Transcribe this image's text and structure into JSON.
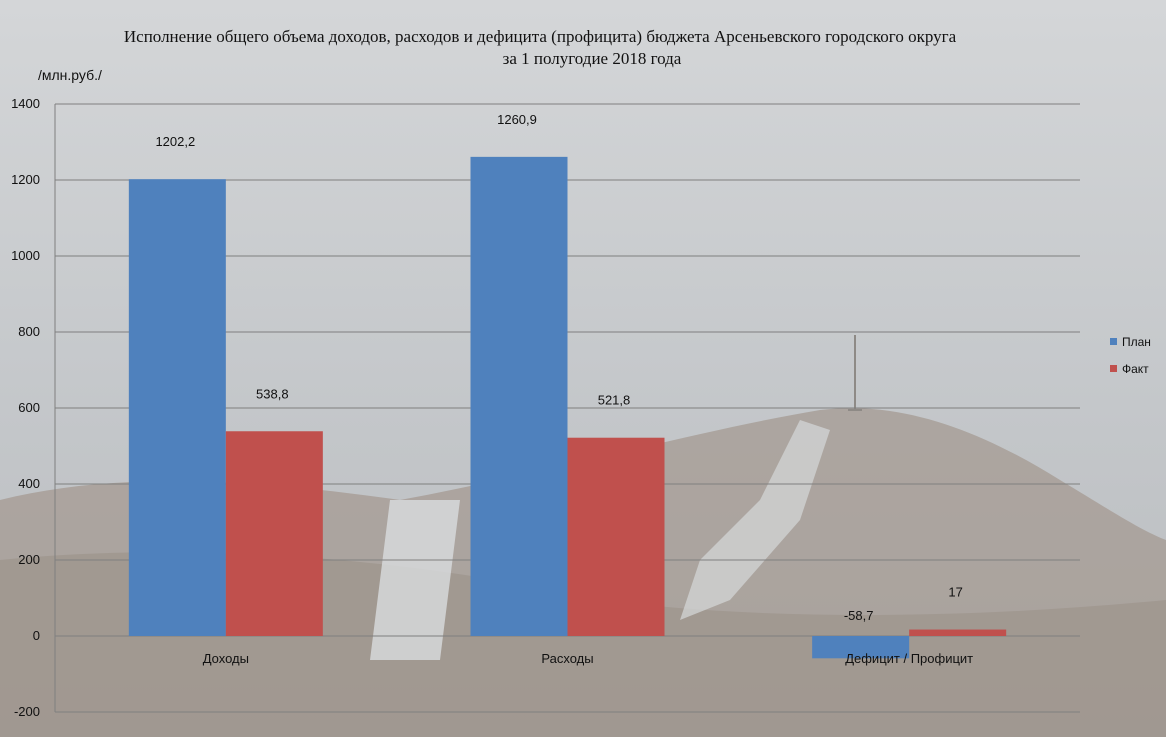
{
  "chart_data": {
    "type": "bar",
    "title": "Исполнение  общего объема доходов, расходов и дефицита  (профицита)  бюджета Арсеньевского городского округа",
    "subtitle": "за 1 полугодие 2018  года",
    "ylabel": "/млн.руб./",
    "xlabel": "",
    "ylim": [
      -200,
      1400
    ],
    "yticks": [
      -200,
      0,
      200,
      400,
      600,
      800,
      1000,
      1200,
      1400
    ],
    "grid": true,
    "legend_position": "right",
    "categories": [
      "Доходы",
      "Расходы",
      "Дефицит / Профицит"
    ],
    "series": [
      {
        "name": "План",
        "color": "#4f81bd",
        "values": [
          1202.2,
          1260.9,
          -58.7
        ],
        "labels": [
          "1202,2",
          "1260,9",
          "-58,7"
        ]
      },
      {
        "name": "Факт",
        "color": "#c0504d",
        "values": [
          538.8,
          521.8,
          17
        ],
        "labels": [
          "538,8",
          "521,8",
          "17"
        ]
      }
    ]
  }
}
